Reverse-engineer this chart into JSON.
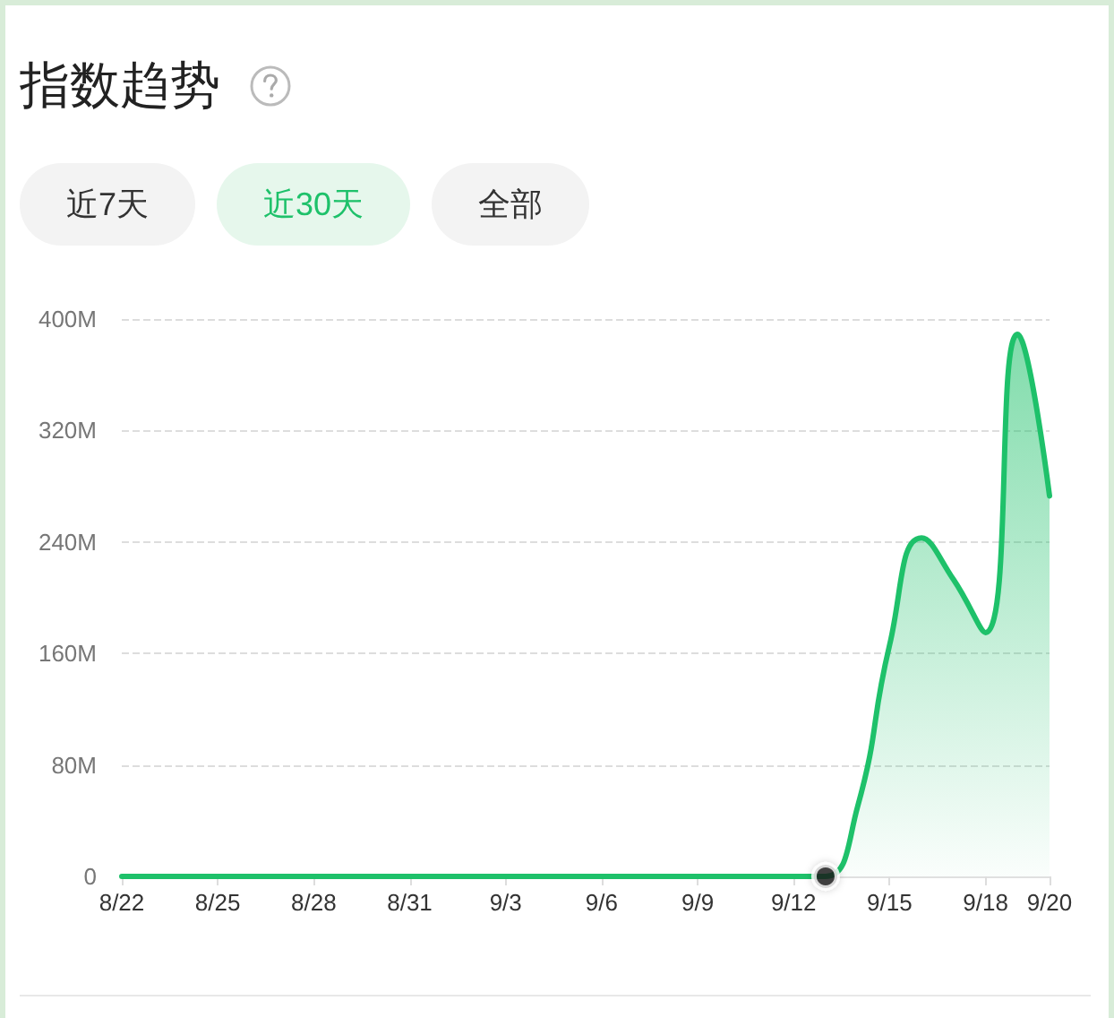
{
  "chart_data": {
    "type": "area",
    "title": "指数趋势",
    "annotations": [
      "近7天",
      "近30天",
      "全部"
    ],
    "categories": [
      "8/22",
      null,
      null,
      "8/25",
      null,
      null,
      "8/28",
      null,
      null,
      "8/31",
      null,
      null,
      "9/3",
      null,
      null,
      "9/6",
      null,
      null,
      "9/9",
      null,
      null,
      "9/12",
      null,
      null,
      "9/15",
      null,
      null,
      "9/18",
      null,
      "9/20"
    ],
    "series": [
      {
        "color": "#1ec16a",
        "marker": "none",
        "values": [
          0,
          0,
          0,
          0,
          0,
          0,
          0,
          0,
          0,
          0,
          0,
          0,
          0,
          0,
          0,
          0,
          0,
          0,
          0,
          0,
          0,
          0,
          0,
          50,
          166,
          243,
          213,
          175,
          389,
          273
        ]
      },
      {
        "type": "scatter",
        "marker": "circle",
        "color": "#1a1a1a",
        "values": [
          null,
          null,
          null,
          null,
          null,
          null,
          null,
          null,
          null,
          null,
          null,
          null,
          null,
          null,
          null,
          null,
          null,
          null,
          null,
          null,
          null,
          null,
          0,
          null,
          null,
          null,
          null,
          null,
          null,
          null
        ]
      }
    ],
    "ylim": [
      0,
      400
    ],
    "yticks": [
      0,
      {
        "value": 80,
        "label": "80M"
      },
      {
        "value": 160,
        "label": "160M"
      },
      {
        "value": 240,
        "label": "240M"
      },
      {
        "value": 320,
        "label": "320M"
      },
      {
        "value": 400,
        "label": "400M"
      }
    ],
    "grid": "y",
    "line_style": "solid"
  }
}
